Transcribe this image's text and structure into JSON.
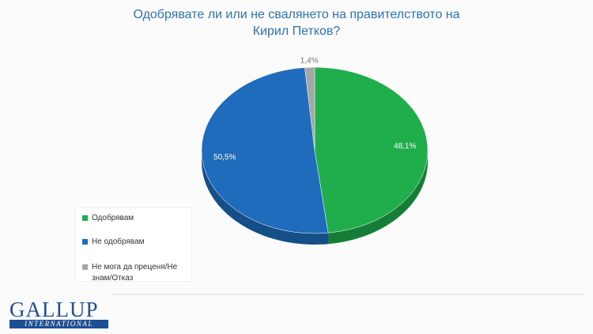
{
  "chart_data": {
    "type": "pie",
    "title": "Одобрявате ли или не свалянето на правителството на Кирил Петков?",
    "categories": [
      "Одобрявам",
      "Не одобрявам",
      "Не мога да преценя/Не знам/Отказ"
    ],
    "values": [
      48.1,
      50.5,
      1.4
    ],
    "value_labels": [
      "48,1%",
      "50,5%",
      "1,4%"
    ],
    "colors": [
      "#1fae4b",
      "#1f6cbd",
      "#a5a5a5"
    ],
    "legend": "left"
  },
  "logo": {
    "name": "GALLUP",
    "subtitle": "INTERNATIONAL"
  }
}
